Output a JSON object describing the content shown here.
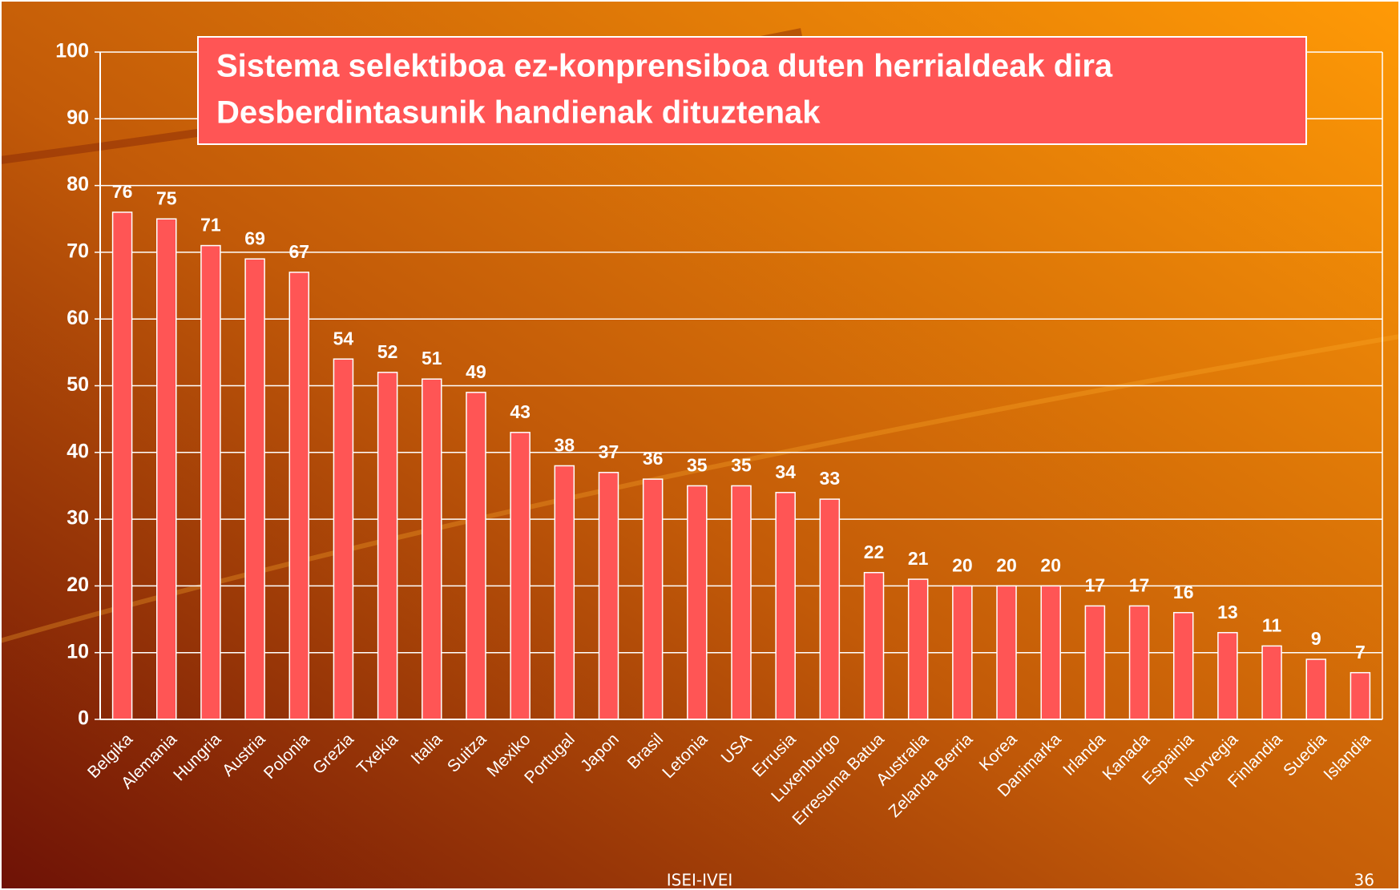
{
  "chart_data": {
    "type": "bar",
    "title": [
      "Sistema selektiboa ez-konprensiboa duten herrialdeak dira",
      "Desberdintasunik handienak dituztenak"
    ],
    "categories": [
      "Belgika",
      "Alemania",
      "Hungria",
      "Austria",
      "Polonia",
      "Grezia",
      "Txekia",
      "Italia",
      "Suitza",
      "Mexiko",
      "Portugal",
      "Japon",
      "Brasil",
      "Letonia",
      "USA",
      "Errusia",
      "Luxenburgo",
      "Erresuma Batua",
      "Australia",
      "Zelanda Berria",
      "Korea",
      "Danimarka",
      "Irlanda",
      "Kanada",
      "Espainia",
      "Norvegia",
      "Finlandia",
      "Suedia",
      "Islandia"
    ],
    "values": [
      76,
      75,
      71,
      69,
      67,
      54,
      52,
      51,
      49,
      43,
      38,
      37,
      36,
      35,
      35,
      34,
      33,
      22,
      21,
      20,
      20,
      20,
      17,
      17,
      16,
      13,
      11,
      9,
      7
    ],
    "color": "#ff5555",
    "ylim": [
      0,
      100
    ],
    "yticks": [
      0,
      10,
      20,
      30,
      40,
      50,
      60,
      70,
      80,
      90,
      100
    ],
    "grid": true
  },
  "footer": {
    "source": "ISEI-IVEI",
    "page": "36"
  }
}
